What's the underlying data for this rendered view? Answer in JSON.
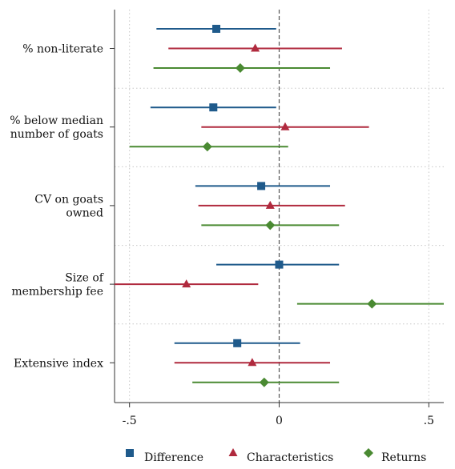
{
  "chart_data": {
    "type": "coefficient-plot",
    "orientation": "horizontal",
    "xlim": [
      -0.55,
      0.55
    ],
    "xticks": [
      {
        "value": -0.5,
        "label": "-.5"
      },
      {
        "value": 0,
        "label": "0"
      },
      {
        "value": 0.5,
        "label": ".5"
      }
    ],
    "reference_line": {
      "x": 0,
      "style": "dashed"
    },
    "grid": {
      "vertical": true,
      "horizontal_group_separators": true,
      "style": "dotted"
    },
    "legend": {
      "placement": "bottom"
    },
    "series": [
      {
        "name": "Difference",
        "marker": "square",
        "color": "#1f5a8b"
      },
      {
        "name": "Characteristics",
        "marker": "triangle",
        "color": "#b02a3e"
      },
      {
        "name": "Returns",
        "marker": "diamond",
        "color": "#4a8a32"
      }
    ],
    "categories": [
      {
        "label_lines": [
          "% non-literate"
        ],
        "points": [
          {
            "series": "Difference",
            "estimate": -0.21,
            "lo": -0.41,
            "hi": -0.01
          },
          {
            "series": "Characteristics",
            "estimate": -0.08,
            "lo": -0.37,
            "hi": 0.21
          },
          {
            "series": "Returns",
            "estimate": -0.13,
            "lo": -0.42,
            "hi": 0.17
          }
        ]
      },
      {
        "label_lines": [
          "% below median",
          "number of goats"
        ],
        "points": [
          {
            "series": "Difference",
            "estimate": -0.22,
            "lo": -0.43,
            "hi": -0.01
          },
          {
            "series": "Characteristics",
            "estimate": 0.02,
            "lo": -0.26,
            "hi": 0.3
          },
          {
            "series": "Returns",
            "estimate": -0.24,
            "lo": -0.5,
            "hi": 0.03
          }
        ]
      },
      {
        "label_lines": [
          "CV on goats",
          "owned"
        ],
        "points": [
          {
            "series": "Difference",
            "estimate": -0.06,
            "lo": -0.28,
            "hi": 0.17
          },
          {
            "series": "Characteristics",
            "estimate": -0.03,
            "lo": -0.27,
            "hi": 0.22
          },
          {
            "series": "Returns",
            "estimate": -0.03,
            "lo": -0.26,
            "hi": 0.2
          }
        ]
      },
      {
        "label_lines": [
          "Size of",
          "membership fee"
        ],
        "points": [
          {
            "series": "Difference",
            "estimate": 0.0,
            "lo": -0.21,
            "hi": 0.2
          },
          {
            "series": "Characteristics",
            "estimate": -0.31,
            "lo": -0.55,
            "hi": -0.07
          },
          {
            "series": "Returns",
            "estimate": 0.31,
            "lo": 0.06,
            "hi": 0.55
          }
        ]
      },
      {
        "label_lines": [
          "Extensive index"
        ],
        "points": [
          {
            "series": "Difference",
            "estimate": -0.14,
            "lo": -0.35,
            "hi": 0.07
          },
          {
            "series": "Characteristics",
            "estimate": -0.09,
            "lo": -0.35,
            "hi": 0.17
          },
          {
            "series": "Returns",
            "estimate": -0.05,
            "lo": -0.29,
            "hi": 0.2
          }
        ]
      }
    ]
  }
}
